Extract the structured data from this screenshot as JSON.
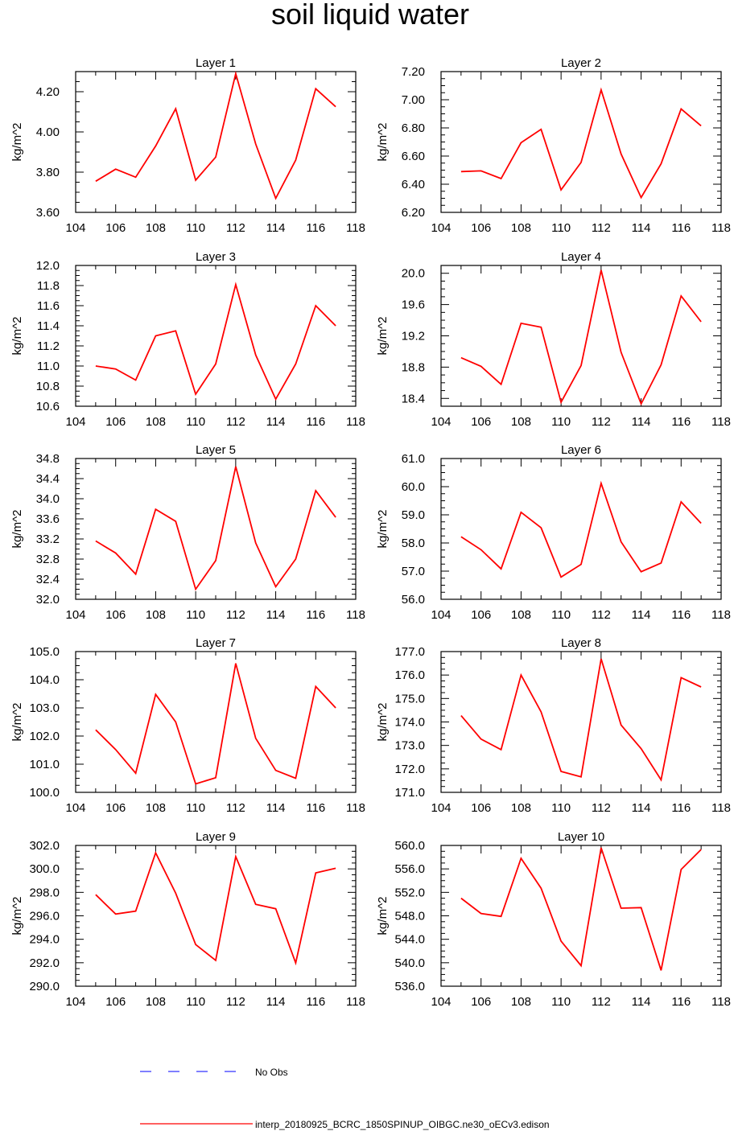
{
  "title": "soil liquid water",
  "legend": {
    "placement": "bottom",
    "entries": [
      {
        "label": "No Obs",
        "color": "#3333ff",
        "style": "dashed"
      },
      {
        "label": "interp_20180925_BCRC_1850SPINUP_OIBGC.ne30_oECv3.edison",
        "color": "#ff0000",
        "style": "solid"
      }
    ]
  },
  "chart_data": [
    {
      "type": "line",
      "title": "Layer 1",
      "ylabel": "kg/m^2",
      "xlim": [
        104,
        118
      ],
      "ylim": [
        3.6,
        4.3
      ],
      "xticks": [
        "104",
        "106",
        "108",
        "110",
        "112",
        "114",
        "116",
        "118"
      ],
      "yticks": [
        "3.60",
        "3.80",
        "4.00",
        "4.20"
      ],
      "series": [
        {
          "color": "#ff0000",
          "x": [
            105,
            106,
            107,
            108,
            109,
            110,
            111,
            112,
            113,
            114,
            115,
            116,
            117
          ],
          "values": [
            3.755,
            3.815,
            3.775,
            3.93,
            4.115,
            3.76,
            3.875,
            4.29,
            3.94,
            3.67,
            3.86,
            4.215,
            4.125
          ]
        }
      ]
    },
    {
      "type": "line",
      "title": "Layer 2",
      "ylabel": "kg/m^2",
      "xlim": [
        104,
        118
      ],
      "ylim": [
        6.2,
        7.2
      ],
      "xticks": [
        "104",
        "106",
        "108",
        "110",
        "112",
        "114",
        "116",
        "118"
      ],
      "yticks": [
        "6.20",
        "6.40",
        "6.60",
        "6.80",
        "7.00",
        "7.20"
      ],
      "series": [
        {
          "color": "#ff0000",
          "x": [
            105,
            106,
            107,
            108,
            109,
            110,
            111,
            112,
            113,
            114,
            115,
            116,
            117
          ],
          "values": [
            6.49,
            6.495,
            6.44,
            6.695,
            6.79,
            6.36,
            6.555,
            7.07,
            6.615,
            6.305,
            6.545,
            6.935,
            6.815
          ]
        }
      ]
    },
    {
      "type": "line",
      "title": "Layer 3",
      "ylabel": "kg/m^2",
      "xlim": [
        104,
        118
      ],
      "ylim": [
        10.6,
        12.0
      ],
      "xticks": [
        "104",
        "106",
        "108",
        "110",
        "112",
        "114",
        "116",
        "118"
      ],
      "yticks": [
        "10.6",
        "10.8",
        "11.0",
        "11.2",
        "11.4",
        "11.6",
        "11.8",
        "12.0"
      ],
      "series": [
        {
          "color": "#ff0000",
          "x": [
            105,
            106,
            107,
            108,
            109,
            110,
            111,
            112,
            113,
            114,
            115,
            116,
            117
          ],
          "values": [
            11.0,
            10.97,
            10.86,
            11.3,
            11.35,
            10.72,
            11.02,
            11.81,
            11.11,
            10.67,
            11.02,
            11.6,
            11.4
          ]
        }
      ]
    },
    {
      "type": "line",
      "title": "Layer 4",
      "ylabel": "kg/m^2",
      "xlim": [
        104,
        118
      ],
      "ylim": [
        18.3,
        20.1
      ],
      "xticks": [
        "104",
        "106",
        "108",
        "110",
        "112",
        "114",
        "116",
        "118"
      ],
      "yticks": [
        "18.4",
        "18.8",
        "19.2",
        "19.6",
        "20.0"
      ],
      "series": [
        {
          "color": "#ff0000",
          "x": [
            105,
            106,
            107,
            108,
            109,
            110,
            111,
            112,
            113,
            114,
            115,
            116,
            117
          ],
          "values": [
            18.92,
            18.81,
            18.58,
            19.36,
            19.31,
            18.35,
            18.82,
            20.04,
            18.99,
            18.33,
            18.83,
            19.71,
            19.38
          ]
        }
      ]
    },
    {
      "type": "line",
      "title": "Layer 5",
      "ylabel": "kg/m^2",
      "xlim": [
        104,
        118
      ],
      "ylim": [
        32.0,
        34.8
      ],
      "xticks": [
        "104",
        "106",
        "108",
        "110",
        "112",
        "114",
        "116",
        "118"
      ],
      "yticks": [
        "32.0",
        "32.4",
        "32.8",
        "33.2",
        "33.6",
        "34.0",
        "34.4",
        "34.8"
      ],
      "series": [
        {
          "color": "#ff0000",
          "x": [
            105,
            106,
            107,
            108,
            109,
            110,
            111,
            112,
            113,
            114,
            115,
            116,
            117
          ],
          "values": [
            33.16,
            32.92,
            32.5,
            33.79,
            33.55,
            32.2,
            32.77,
            34.64,
            33.12,
            32.25,
            32.8,
            34.16,
            33.63
          ]
        }
      ]
    },
    {
      "type": "line",
      "title": "Layer 6",
      "ylabel": "kg/m^2",
      "xlim": [
        104,
        118
      ],
      "ylim": [
        56.0,
        61.0
      ],
      "xticks": [
        "104",
        "106",
        "108",
        "110",
        "112",
        "114",
        "116",
        "118"
      ],
      "yticks": [
        "56.0",
        "57.0",
        "58.0",
        "59.0",
        "60.0",
        "61.0"
      ],
      "series": [
        {
          "color": "#ff0000",
          "x": [
            105,
            106,
            107,
            108,
            109,
            110,
            111,
            112,
            113,
            114,
            115,
            116,
            117
          ],
          "values": [
            58.22,
            57.76,
            57.08,
            59.09,
            58.54,
            56.79,
            57.24,
            60.12,
            58.04,
            56.98,
            57.29,
            59.46,
            58.7
          ]
        }
      ]
    },
    {
      "type": "line",
      "title": "Layer 7",
      "ylabel": "kg/m^2",
      "xlim": [
        104,
        118
      ],
      "ylim": [
        100.0,
        105.0
      ],
      "xticks": [
        "104",
        "106",
        "108",
        "110",
        "112",
        "114",
        "116",
        "118"
      ],
      "yticks": [
        "100.0",
        "101.0",
        "102.0",
        "103.0",
        "104.0",
        "105.0"
      ],
      "series": [
        {
          "color": "#ff0000",
          "x": [
            105,
            106,
            107,
            108,
            109,
            110,
            111,
            112,
            113,
            114,
            115,
            116,
            117
          ],
          "values": [
            102.22,
            101.52,
            100.68,
            103.48,
            102.5,
            100.3,
            100.52,
            104.58,
            101.92,
            100.78,
            100.5,
            103.76,
            103.0
          ]
        }
      ]
    },
    {
      "type": "line",
      "title": "Layer 8",
      "ylabel": "kg/m^2",
      "xlim": [
        104,
        118
      ],
      "ylim": [
        171.0,
        177.0
      ],
      "xticks": [
        "104",
        "106",
        "108",
        "110",
        "112",
        "114",
        "116",
        "118"
      ],
      "yticks": [
        "171.0",
        "172.0",
        "173.0",
        "174.0",
        "175.0",
        "176.0",
        "177.0"
      ],
      "series": [
        {
          "color": "#ff0000",
          "x": [
            105,
            106,
            107,
            108,
            109,
            110,
            111,
            112,
            113,
            114,
            115,
            116,
            117
          ],
          "values": [
            174.27,
            173.27,
            172.82,
            176.0,
            174.43,
            171.89,
            171.66,
            176.69,
            173.87,
            172.86,
            171.53,
            175.89,
            175.49
          ]
        }
      ]
    },
    {
      "type": "line",
      "title": "Layer 9",
      "ylabel": "kg/m^2",
      "xlim": [
        104,
        118
      ],
      "ylim": [
        290.0,
        302.0
      ],
      "xticks": [
        "104",
        "106",
        "108",
        "110",
        "112",
        "114",
        "116",
        "118"
      ],
      "yticks": [
        "290.0",
        "292.0",
        "294.0",
        "296.0",
        "298.0",
        "300.0",
        "302.0"
      ],
      "series": [
        {
          "color": "#ff0000",
          "x": [
            105,
            106,
            107,
            108,
            109,
            110,
            111,
            112,
            113,
            114,
            115,
            116,
            117
          ],
          "values": [
            297.8,
            296.15,
            296.4,
            301.37,
            297.93,
            293.55,
            292.2,
            301.05,
            296.98,
            296.6,
            291.98,
            299.66,
            300.05
          ]
        }
      ]
    },
    {
      "type": "line",
      "title": "Layer 10",
      "ylabel": "kg/m^2",
      "xlim": [
        104,
        118
      ],
      "ylim": [
        536.0,
        560.0
      ],
      "xticks": [
        "104",
        "106",
        "108",
        "110",
        "112",
        "114",
        "116",
        "118"
      ],
      "yticks": [
        "536.0",
        "540.0",
        "544.0",
        "548.0",
        "552.0",
        "556.0",
        "560.0"
      ],
      "series": [
        {
          "color": "#ff0000",
          "x": [
            105,
            106,
            107,
            108,
            109,
            110,
            111,
            112,
            113,
            114,
            115,
            116,
            117
          ],
          "values": [
            551.0,
            548.4,
            547.9,
            557.8,
            552.7,
            543.7,
            539.5,
            559.6,
            549.3,
            549.4,
            538.7,
            555.9,
            559.3
          ]
        }
      ]
    }
  ]
}
